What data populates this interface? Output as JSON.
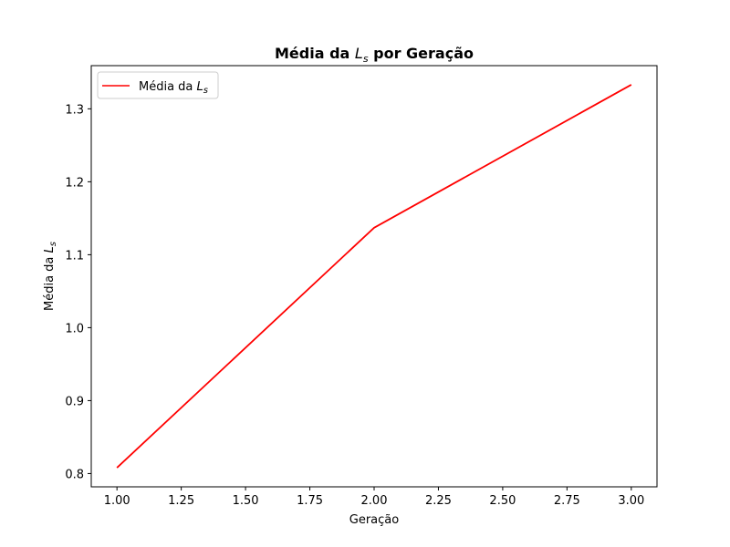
{
  "chart_data": {
    "type": "line",
    "title": "Média da L_s por Geração",
    "title_parts": {
      "before": "Média da ",
      "var": "L",
      "sub": "s",
      "after": " por Geração"
    },
    "xlabel": "Geração",
    "ylabel": "Média da L_s",
    "ylabel_parts": {
      "before": "Média da ",
      "var": "L",
      "sub": "s"
    },
    "x": [
      1.0,
      2.0,
      3.0
    ],
    "series": [
      {
        "name": "Média da L_s",
        "name_parts": {
          "before": "Média da ",
          "var": "L",
          "sub": "s"
        },
        "values": [
          0.808,
          1.137,
          1.333
        ],
        "color": "#ff0000"
      }
    ],
    "xlim": [
      0.9,
      3.1
    ],
    "ylim": [
      0.7818,
      1.3592
    ],
    "xticks": [
      1.0,
      1.25,
      1.5,
      1.75,
      2.0,
      2.25,
      2.5,
      2.75,
      3.0
    ],
    "xtick_labels": [
      "1.00",
      "1.25",
      "1.50",
      "1.75",
      "2.00",
      "2.25",
      "2.50",
      "2.75",
      "3.00"
    ],
    "yticks": [
      0.8,
      0.9,
      1.0,
      1.1,
      1.2,
      1.3
    ],
    "ytick_labels": [
      "0.8",
      "0.9",
      "1.0",
      "1.1",
      "1.2",
      "1.3"
    ],
    "grid": false,
    "legend_position": "upper-left"
  }
}
